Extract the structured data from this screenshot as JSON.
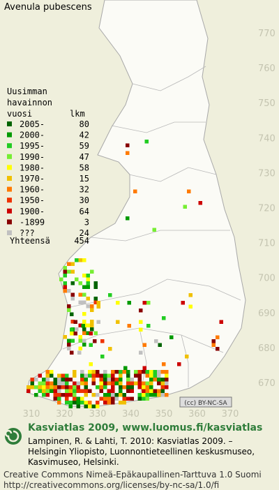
{
  "title": "Avenula pubescens",
  "legend": {
    "header": [
      "Uusimman",
      "havainnon",
      "vuosi"
    ],
    "count_header": "lkm",
    "rows": [
      {
        "label": "2005-",
        "count": 80,
        "color": "#006400"
      },
      {
        "label": "2000-",
        "count": 42,
        "color": "#009a00"
      },
      {
        "label": "1995-",
        "count": 59,
        "color": "#22cc22"
      },
      {
        "label": "1990-",
        "count": 47,
        "color": "#77ee33"
      },
      {
        "label": "1980-",
        "count": 58,
        "color": "#ffff00"
      },
      {
        "label": "1970-",
        "count": 15,
        "color": "#f0c000"
      },
      {
        "label": "1960-",
        "count": 32,
        "color": "#ff7a00"
      },
      {
        "label": "1950-",
        "count": 30,
        "color": "#ee3300"
      },
      {
        "label": "1900-",
        "count": 64,
        "color": "#cc0000"
      },
      {
        "label": "-1899",
        "count": 3,
        "color": "#880000"
      },
      {
        "label": "???",
        "count": 24,
        "color": "#c0c0c0"
      }
    ],
    "total": {
      "label": "Yhteensä",
      "count": 454
    }
  },
  "grid": {
    "north": [
      770,
      760,
      750,
      740,
      730,
      720,
      710,
      700,
      690,
      680,
      670
    ],
    "east": [
      310,
      320,
      330,
      340,
      350,
      360,
      370
    ]
  },
  "license_badge": "(cc) BY-NC-SA",
  "footer": {
    "title": "Kasviatlas 2009, www.luomus.fi/kasviatlas",
    "citation": [
      "Lampinen, R. & Lahti, T. 2010: Kasviatlas 2009. –",
      "Helsingin Yliopisto, Luonnontieteellinen keskusmuseo,",
      "Kasvimuseo, Helsinki."
    ],
    "license": [
      "Creative Commons Nimeä-Epäkaupallinen-Tarttuva 1.0 Suomi",
      "http://creativecommons.org/licenses/by-nc-sa/1.0/fi"
    ]
  }
}
